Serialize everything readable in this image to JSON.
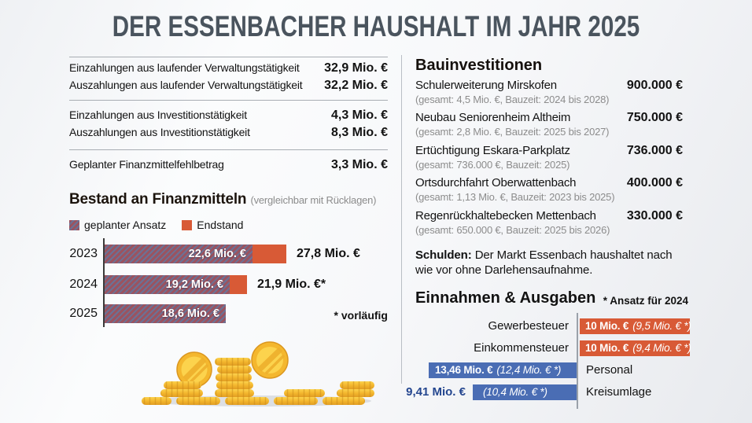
{
  "title": "DER ESSENBACHER HAUSHALT IM JAHR 2025",
  "colors": {
    "accent_orange": "#d85a36",
    "bar_blue": "#4a6db4",
    "hatch_red": "#9a5360",
    "hatch_blue": "#6b7296",
    "navy_text": "#24468f",
    "title_gray": "#4a545e"
  },
  "cash_flow": {
    "rows": [
      {
        "label": "Einzahlungen aus laufender Verwaltungstätigkeit",
        "value": "32,9 Mio. €"
      },
      {
        "label": "Auszahlungen aus laufender Verwaltungstätigkeit",
        "value": "32,2 Mio. €"
      },
      {
        "label": "Einzahlungen aus Investitionstätigkeit",
        "value": "4,3 Mio. €"
      },
      {
        "label": "Auszahlungen aus Investitionstätigkeit",
        "value": "8,3 Mio. €"
      },
      {
        "label": "Geplanter Finanzmittelfehlbetrag",
        "value": "3,3 Mio. €"
      }
    ]
  },
  "bauinvestitionen": {
    "heading": "Bauinvestitionen",
    "projects": [
      {
        "name": "Schulerweiterung Mirskofen",
        "detail": "(gesamt: 4,5 Mio. €, Bauzeit: 2024 bis 2028)",
        "value": "900.000 €"
      },
      {
        "name": "Neubau Seniorenheim Altheim",
        "detail": "(gesamt: 2,8 Mio. €, Bauzeit: 2025 bis 2027)",
        "value": "750.000 €"
      },
      {
        "name": "Ertüchtigung Eskara-Parkplatz",
        "detail": "(gesamt: 736.000 €, Bauzeit: 2025)",
        "value": "736.000 €"
      },
      {
        "name": "Ortsdurchfahrt Oberwattenbach",
        "detail": "(gesamt: 1,13 Mio. €, Bauzeit: 2023 bis 2025)",
        "value": "400.000 €"
      },
      {
        "name": "Regenrückhaltebecken Mettenbach",
        "detail": "(gesamt: 650.000 €, Bauzeit: 2025 bis 2026)",
        "value": "330.000 €"
      }
    ]
  },
  "schulden": {
    "label": "Schulden:",
    "text": "Der Markt Essenbach haushaltet nach wie vor ohne Darlehensaufnahme."
  },
  "chart_data": [
    {
      "id": "bestand-an-finanzmitteln",
      "type": "bar",
      "orientation": "horizontal",
      "title": "Bestand an Finanzmitteln",
      "subtitle": "(vergleichbar mit Rücklagen)",
      "unit": "Mio. €",
      "legend": [
        "geplanter Ansatz",
        "Endstand"
      ],
      "legend_position": "top",
      "categories": [
        "2023",
        "2024",
        "2025"
      ],
      "series": [
        {
          "name": "geplanter Ansatz",
          "values": [
            22.6,
            19.2,
            18.6
          ]
        },
        {
          "name": "Endstand",
          "values": [
            27.8,
            21.9,
            null
          ]
        }
      ],
      "bar_labels": [
        "22,6 Mio. €",
        "19,2 Mio. €",
        "18,6 Mio. €"
      ],
      "total_labels": [
        "27,8 Mio. €",
        "21,9 Mio. €*",
        ""
      ],
      "footnote": "* vorläufig"
    },
    {
      "id": "einnahmen-ausgaben",
      "type": "bar",
      "orientation": "diverging-horizontal",
      "title": "Einnahmen & Ausgaben",
      "note": "* Ansatz für 2024",
      "unit": "Mio. €",
      "rows": [
        {
          "category": "Gewerbesteuer",
          "side": "einnahmen",
          "value_2025": 10,
          "ansatz_2024": 9.5,
          "value_label": "10 Mio. €",
          "ansatz_label": "(9,5 Mio. € *)"
        },
        {
          "category": "Einkommensteuer",
          "side": "einnahmen",
          "value_2025": 10,
          "ansatz_2024": 9.4,
          "value_label": "10 Mio. €",
          "ansatz_label": "(9,4 Mio. € *)"
        },
        {
          "category": "Personal",
          "side": "ausgaben",
          "value_2025": 13.46,
          "ansatz_2024": 12.4,
          "value_label": "13,46 Mio. €",
          "ansatz_label": "(12,4 Mio. € *)"
        },
        {
          "category": "Kreisumlage",
          "side": "ausgaben",
          "value_2025": 9.41,
          "ansatz_2024": 10.4,
          "value_label": "9,41 Mio. €",
          "ansatz_label": "(10,4 Mio. € *)"
        }
      ]
    }
  ]
}
